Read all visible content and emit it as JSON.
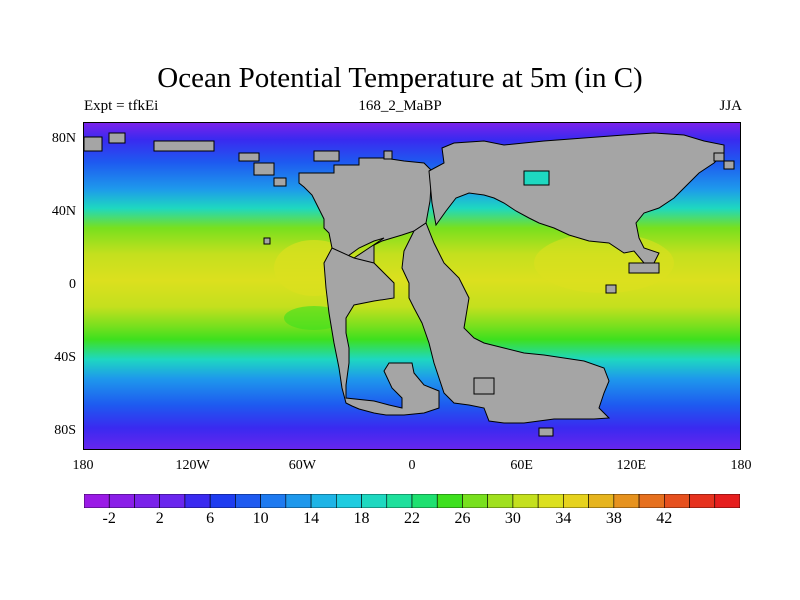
{
  "title": "Ocean Potential Temperature at 5m (in C)",
  "subtitle_left": "Expt = tfkEi",
  "subtitle_center": "168_2_MaBP",
  "subtitle_right": "JJA",
  "lat_ticks": [
    "80N",
    "40N",
    "0",
    "40S",
    "80S"
  ],
  "lat_values": [
    80,
    40,
    0,
    -40,
    -80
  ],
  "lon_ticks": [
    "180",
    "120W",
    "60W",
    "0",
    "60E",
    "120E",
    "180"
  ],
  "lon_values": [
    -180,
    -120,
    -60,
    0,
    60,
    120,
    180
  ],
  "land_color": "#a5a5a5",
  "colorbar": {
    "labels": [
      "-2",
      "2",
      "6",
      "10",
      "14",
      "18",
      "22",
      "26",
      "30",
      "34",
      "38",
      "42"
    ],
    "colors": [
      "#9a1ae6",
      "#8a1ee8",
      "#7a22ea",
      "#6a26ee",
      "#3a2af0",
      "#1e3cf0",
      "#1e5af0",
      "#1e7af0",
      "#1e98ec",
      "#1eb4e6",
      "#1ecce0",
      "#1ed8c0",
      "#1ee09c",
      "#1ee070",
      "#3ee01e",
      "#78e01e",
      "#a0e01e",
      "#c4e01e",
      "#dce01e",
      "#e6d21e",
      "#e6b41e",
      "#e6921e",
      "#e6701e",
      "#e6501e",
      "#e6321e",
      "#e61e1e"
    ]
  }
}
